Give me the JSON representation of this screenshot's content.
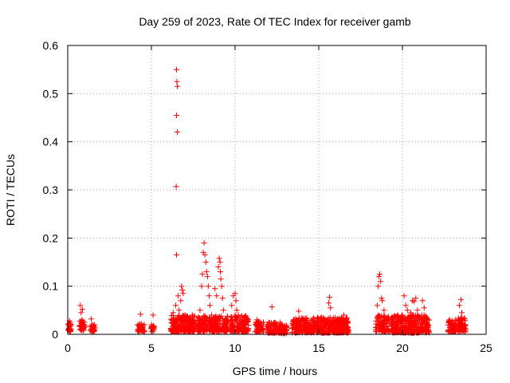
{
  "chart_data": {
    "type": "scatter",
    "title": "Day 259 of 2023, Rate Of TEC Index for receiver gamb",
    "xlabel": "GPS time / hours",
    "ylabel": "ROTI / TECUs",
    "xlim": [
      0,
      25
    ],
    "ylim": [
      0,
      0.6
    ],
    "xticks": [
      "0",
      "5",
      "10",
      "15",
      "20",
      "25"
    ],
    "yticks": [
      "0",
      "0.1",
      "0.2",
      "0.3",
      "0.4",
      "0.5",
      "0.6"
    ],
    "grid": true,
    "marker": "+",
    "color": "#ff0000",
    "series": [
      {
        "points": [
          [
            0.05,
            0.022
          ],
          [
            0.08,
            0.015
          ],
          [
            0.1,
            0.028
          ],
          [
            0.12,
            0.012
          ],
          [
            0.15,
            0.018
          ],
          [
            0.75,
            0.06
          ],
          [
            0.8,
            0.045
          ],
          [
            0.85,
            0.03
          ],
          [
            0.9,
            0.02
          ],
          [
            0.95,
            0.015
          ],
          [
            1.0,
            0.025
          ],
          [
            0.88,
            0.052
          ],
          [
            1.4,
            0.032
          ],
          [
            1.45,
            0.02
          ],
          [
            1.5,
            0.012
          ],
          [
            1.55,
            0.018
          ],
          [
            1.6,
            0.01
          ],
          [
            4.2,
            0.02
          ],
          [
            4.3,
            0.015
          ],
          [
            4.35,
            0.042
          ],
          [
            4.4,
            0.012
          ],
          [
            4.5,
            0.018
          ],
          [
            5.0,
            0.02
          ],
          [
            5.05,
            0.012
          ],
          [
            5.1,
            0.04
          ],
          [
            5.15,
            0.015
          ],
          [
            6.2,
            0.03
          ],
          [
            6.3,
            0.045
          ],
          [
            6.4,
            0.025
          ],
          [
            6.45,
            0.06
          ],
          [
            6.5,
            0.55
          ],
          [
            6.52,
            0.525
          ],
          [
            6.55,
            0.515
          ],
          [
            6.5,
            0.455
          ],
          [
            6.55,
            0.42
          ],
          [
            6.48,
            0.307
          ],
          [
            6.5,
            0.165
          ],
          [
            6.6,
            0.08
          ],
          [
            6.65,
            0.05
          ],
          [
            6.8,
            0.1
          ],
          [
            6.85,
            0.092
          ],
          [
            6.9,
            0.085
          ],
          [
            6.75,
            0.07
          ],
          [
            6.7,
            0.03
          ],
          [
            7.0,
            0.04
          ],
          [
            7.1,
            0.03
          ],
          [
            7.2,
            0.025
          ],
          [
            7.3,
            0.035
          ],
          [
            7.4,
            0.02
          ],
          [
            7.5,
            0.028
          ],
          [
            7.55,
            0.015
          ],
          [
            7.9,
            0.05
          ],
          [
            8.0,
            0.1
          ],
          [
            8.05,
            0.125
          ],
          [
            8.1,
            0.17
          ],
          [
            8.15,
            0.19
          ],
          [
            8.2,
            0.165
          ],
          [
            8.25,
            0.15
          ],
          [
            8.3,
            0.13
          ],
          [
            8.35,
            0.12
          ],
          [
            8.4,
            0.1
          ],
          [
            8.45,
            0.08
          ],
          [
            8.5,
            0.06
          ],
          [
            8.6,
            0.04
          ],
          [
            8.7,
            0.03
          ],
          [
            8.8,
            0.095
          ],
          [
            8.9,
            0.08
          ],
          [
            9.0,
            0.14
          ],
          [
            9.05,
            0.158
          ],
          [
            9.1,
            0.15
          ],
          [
            9.12,
            0.13
          ],
          [
            9.15,
            0.115
          ],
          [
            9.2,
            0.1
          ],
          [
            9.25,
            0.075
          ],
          [
            9.3,
            0.05
          ],
          [
            9.4,
            0.03
          ],
          [
            9.5,
            0.025
          ],
          [
            9.8,
            0.06
          ],
          [
            9.85,
            0.03
          ],
          [
            9.9,
            0.08
          ],
          [
            10.0,
            0.085
          ],
          [
            10.05,
            0.07
          ],
          [
            10.1,
            0.05
          ],
          [
            10.2,
            0.04
          ],
          [
            10.3,
            0.03
          ],
          [
            10.5,
            0.02
          ],
          [
            10.7,
            0.025
          ],
          [
            11.3,
            0.03
          ],
          [
            11.4,
            0.02
          ],
          [
            11.5,
            0.025
          ],
          [
            11.6,
            0.018
          ],
          [
            12.0,
            0.02
          ],
          [
            12.2,
            0.057
          ],
          [
            12.3,
            0.018
          ],
          [
            12.5,
            0.015
          ],
          [
            12.7,
            0.025
          ],
          [
            12.8,
            0.02
          ],
          [
            12.9,
            0.012
          ],
          [
            13.0,
            0.01
          ],
          [
            13.5,
            0.03
          ],
          [
            13.7,
            0.025
          ],
          [
            13.8,
            0.048
          ],
          [
            13.9,
            0.02
          ],
          [
            14.0,
            0.03
          ],
          [
            14.2,
            0.025
          ],
          [
            14.4,
            0.02
          ],
          [
            14.6,
            0.03
          ],
          [
            14.8,
            0.022
          ],
          [
            15.0,
            0.025
          ],
          [
            15.2,
            0.03
          ],
          [
            15.4,
            0.018
          ],
          [
            15.6,
            0.065
          ],
          [
            15.65,
            0.077
          ],
          [
            15.7,
            0.055
          ],
          [
            15.8,
            0.03
          ],
          [
            16.0,
            0.025
          ],
          [
            16.2,
            0.02
          ],
          [
            16.5,
            0.04
          ],
          [
            16.6,
            0.03
          ],
          [
            16.7,
            0.015
          ],
          [
            18.5,
            0.06
          ],
          [
            18.55,
            0.1
          ],
          [
            18.6,
            0.12
          ],
          [
            18.65,
            0.125
          ],
          [
            18.7,
            0.11
          ],
          [
            18.75,
            0.075
          ],
          [
            18.8,
            0.07
          ],
          [
            18.9,
            0.05
          ],
          [
            19.0,
            0.03
          ],
          [
            19.2,
            0.025
          ],
          [
            19.5,
            0.02
          ],
          [
            19.7,
            0.025
          ],
          [
            19.9,
            0.03
          ],
          [
            20.0,
            0.04
          ],
          [
            20.1,
            0.08
          ],
          [
            20.2,
            0.06
          ],
          [
            20.3,
            0.05
          ],
          [
            20.4,
            0.035
          ],
          [
            20.5,
            0.045
          ],
          [
            20.6,
            0.07
          ],
          [
            20.7,
            0.068
          ],
          [
            20.8,
            0.075
          ],
          [
            20.9,
            0.05
          ],
          [
            21.0,
            0.035
          ],
          [
            21.2,
            0.07
          ],
          [
            21.3,
            0.055
          ],
          [
            21.4,
            0.03
          ],
          [
            21.5,
            0.02
          ],
          [
            22.8,
            0.03
          ],
          [
            22.9,
            0.02
          ],
          [
            23.0,
            0.015
          ],
          [
            23.1,
            0.025
          ],
          [
            23.4,
            0.06
          ],
          [
            23.5,
            0.072
          ],
          [
            23.55,
            0.045
          ],
          [
            23.6,
            0.03
          ],
          [
            23.7,
            0.02
          ]
        ]
      }
    ],
    "clusters": [
      {
        "x0": 0.0,
        "x1": 0.2,
        "ymin": 0.005,
        "ymax": 0.025,
        "n": 25
      },
      {
        "x0": 0.7,
        "x1": 1.05,
        "ymin": 0.008,
        "ymax": 0.03,
        "n": 30
      },
      {
        "x0": 1.35,
        "x1": 1.65,
        "ymin": 0.005,
        "ymax": 0.02,
        "n": 25
      },
      {
        "x0": 4.15,
        "x1": 4.6,
        "ymin": 0.005,
        "ymax": 0.022,
        "n": 30
      },
      {
        "x0": 4.95,
        "x1": 5.2,
        "ymin": 0.005,
        "ymax": 0.018,
        "n": 15
      },
      {
        "x0": 6.15,
        "x1": 7.6,
        "ymin": 0.005,
        "ymax": 0.04,
        "n": 220
      },
      {
        "x0": 7.75,
        "x1": 9.6,
        "ymin": 0.005,
        "ymax": 0.04,
        "n": 240
      },
      {
        "x0": 9.7,
        "x1": 10.8,
        "ymin": 0.005,
        "ymax": 0.04,
        "n": 140
      },
      {
        "x0": 11.2,
        "x1": 11.7,
        "ymin": 0.005,
        "ymax": 0.03,
        "n": 60
      },
      {
        "x0": 11.9,
        "x1": 12.5,
        "ymin": 0.003,
        "ymax": 0.025,
        "n": 60
      },
      {
        "x0": 12.6,
        "x1": 13.1,
        "ymin": 0.002,
        "ymax": 0.02,
        "n": 60
      },
      {
        "x0": 13.4,
        "x1": 16.8,
        "ymin": 0.003,
        "ymax": 0.035,
        "n": 420
      },
      {
        "x0": 18.4,
        "x1": 19.2,
        "ymin": 0.005,
        "ymax": 0.04,
        "n": 100
      },
      {
        "x0": 19.3,
        "x1": 21.6,
        "ymin": 0.003,
        "ymax": 0.04,
        "n": 320
      },
      {
        "x0": 22.7,
        "x1": 23.2,
        "ymin": 0.005,
        "ymax": 0.03,
        "n": 60
      },
      {
        "x0": 23.3,
        "x1": 23.8,
        "ymin": 0.005,
        "ymax": 0.035,
        "n": 60
      }
    ]
  }
}
